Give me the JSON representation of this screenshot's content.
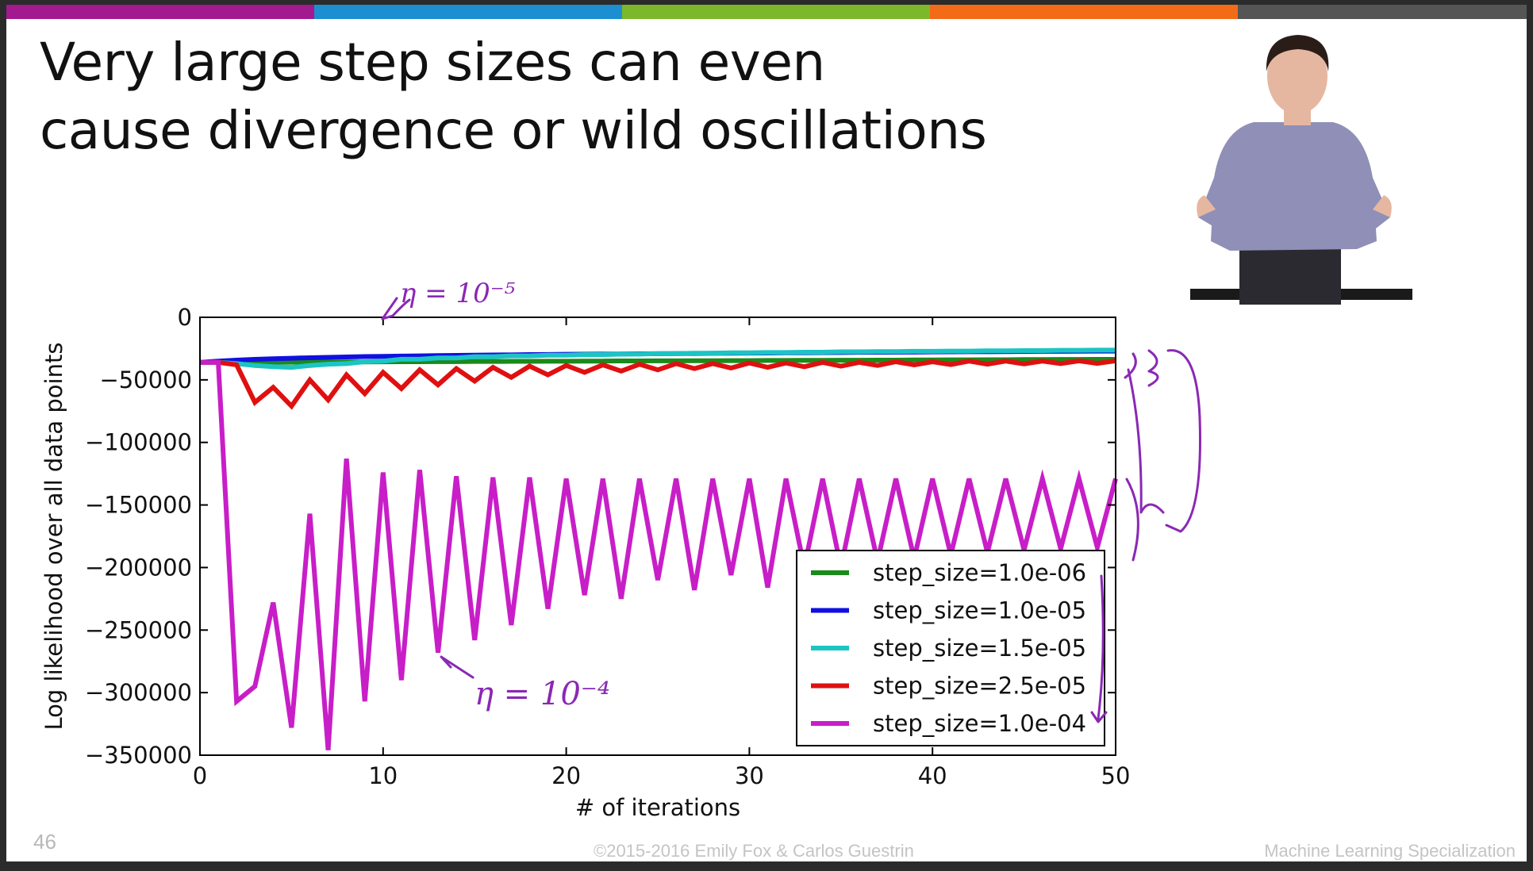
{
  "slide": {
    "title_lines": [
      "Very large step sizes can even",
      "cause divergence or wild oscillations"
    ],
    "slide_number": "46",
    "copyright": "©2015-2016 Emily Fox & Carlos Guestrin",
    "course": "Machine Learning Specialization",
    "colorbar": [
      "#a3198f",
      "#1b8fd1",
      "#7db82b",
      "#f36a17",
      "#555555"
    ]
  },
  "annotations": {
    "eta_small": "η = 10⁻⁵",
    "eta_large": "η = 10⁻⁴"
  },
  "chart_data": {
    "type": "line",
    "xlabel": "# of iterations",
    "ylabel": "Log likelihood over all data points",
    "xlim": [
      0,
      50
    ],
    "ylim": [
      -350000,
      0
    ],
    "xticks": [
      "0",
      "10",
      "20",
      "30",
      "40",
      "50"
    ],
    "yticks": [
      "0",
      "−50000",
      "−100000",
      "−150000",
      "−200000",
      "−250000",
      "−300000",
      "−350000"
    ],
    "ytick_values": [
      0,
      -50000,
      -100000,
      -150000,
      -200000,
      -250000,
      -300000,
      -350000
    ],
    "grid": false,
    "legend_position": "lower-right",
    "x": [
      0,
      1,
      2,
      3,
      4,
      5,
      6,
      7,
      8,
      9,
      10,
      11,
      12,
      13,
      14,
      15,
      16,
      17,
      18,
      19,
      20,
      21,
      22,
      23,
      24,
      25,
      26,
      27,
      28,
      29,
      30,
      31,
      32,
      33,
      34,
      35,
      36,
      37,
      38,
      39,
      40,
      41,
      42,
      43,
      44,
      45,
      46,
      47,
      48,
      49,
      50
    ],
    "series": [
      {
        "name": "step_size=1.0e-06",
        "color": "#1a8a1a",
        "values": [
          -36000,
          -36000,
          -36000,
          -36000,
          -35900,
          -35900,
          -35800,
          -35800,
          -35700,
          -35700,
          -35600,
          -35500,
          -35500,
          -35400,
          -35400,
          -35300,
          -35300,
          -35200,
          -35200,
          -35100,
          -35100,
          -35000,
          -35000,
          -34900,
          -34900,
          -34800,
          -34800,
          -34700,
          -34700,
          -34600,
          -34600,
          -34500,
          -34500,
          -34400,
          -34400,
          -34300,
          -34300,
          -34200,
          -34200,
          -34100,
          -34100,
          -34000,
          -34000,
          -33900,
          -33900,
          -33800,
          -33800,
          -33700,
          -33700,
          -33600,
          -33600
        ]
      },
      {
        "name": "step_size=1.0e-05",
        "color": "#1010e0",
        "values": [
          -36000,
          -35000,
          -34200,
          -33600,
          -33100,
          -32700,
          -32300,
          -32000,
          -31700,
          -31400,
          -31200,
          -31000,
          -30800,
          -30600,
          -30400,
          -30300,
          -30100,
          -30000,
          -29800,
          -29700,
          -29600,
          -29500,
          -29400,
          -29300,
          -29200,
          -29100,
          -29000,
          -28900,
          -28800,
          -28700,
          -28600,
          -28500,
          -28400,
          -28300,
          -28200,
          -28100,
          -28000,
          -28000,
          -27900,
          -27800,
          -27700,
          -27600,
          -27500,
          -27500,
          -27400,
          -27300,
          -27200,
          -27200,
          -27100,
          -27000,
          -27000
        ]
      },
      {
        "name": "step_size=1.5e-05",
        "color": "#1cc4c4",
        "values": [
          -36000,
          -36000,
          -37000,
          -38500,
          -39500,
          -40000,
          -38500,
          -37500,
          -37000,
          -35500,
          -35000,
          -33500,
          -33500,
          -32500,
          -32500,
          -31500,
          -31500,
          -30800,
          -30800,
          -30300,
          -30300,
          -29800,
          -29800,
          -29400,
          -29400,
          -29000,
          -29000,
          -28700,
          -28700,
          -28400,
          -28400,
          -28100,
          -28100,
          -27900,
          -27900,
          -27600,
          -27600,
          -27400,
          -27400,
          -27200,
          -27200,
          -27000,
          -27000,
          -26800,
          -26800,
          -26600,
          -26600,
          -26400,
          -26400,
          -26200,
          -26200
        ]
      },
      {
        "name": "step_size=2.5e-05",
        "color": "#e01010",
        "values": [
          -36000,
          -36000,
          -38000,
          -68000,
          -56000,
          -71000,
          -50000,
          -66000,
          -46000,
          -61000,
          -44000,
          -57000,
          -42000,
          -54000,
          -41000,
          -51000,
          -40000,
          -48000,
          -39000,
          -46000,
          -38500,
          -44000,
          -38000,
          -43000,
          -37500,
          -42000,
          -37000,
          -41000,
          -37000,
          -40500,
          -36500,
          -40000,
          -36500,
          -39500,
          -36000,
          -39000,
          -36000,
          -38500,
          -35500,
          -38000,
          -35500,
          -37800,
          -35000,
          -37500,
          -35000,
          -37200,
          -35000,
          -37000,
          -34800,
          -36800,
          -34800
        ]
      },
      {
        "name": "step_size=1.0e-04",
        "color": "#c81ec8",
        "values": [
          -36000,
          -36000,
          -307000,
          -295000,
          -228000,
          -328000,
          -157000,
          -346000,
          -113000,
          -307000,
          -124000,
          -290000,
          -122000,
          -268000,
          -127000,
          -258000,
          -128000,
          -246000,
          -128000,
          -233000,
          -129000,
          -222000,
          -129000,
          -225000,
          -129000,
          -210000,
          -129000,
          -218000,
          -129000,
          -206000,
          -129000,
          -216000,
          -129000,
          -200000,
          -129000,
          -200000,
          -129000,
          -195000,
          -129000,
          -193000,
          -129000,
          -190000,
          -129000,
          -188000,
          -129000,
          -186000,
          -129000,
          -185000,
          -129000,
          -184000,
          -129000
        ]
      }
    ]
  }
}
